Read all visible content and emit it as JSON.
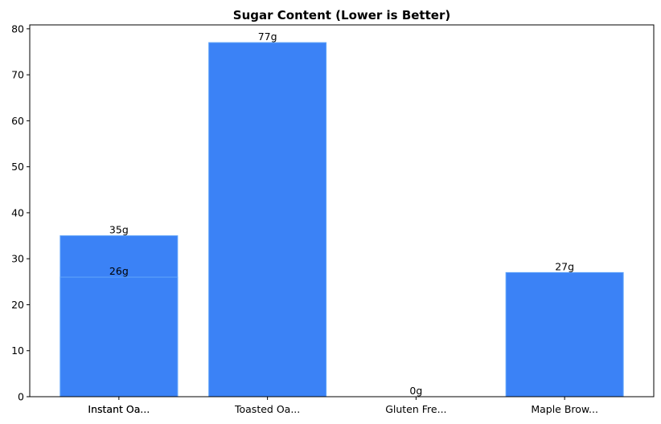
{
  "chart_data": {
    "type": "bar",
    "title": "Sugar Content (Lower is Better)",
    "categories": [
      "Instant Oa...",
      "Toasted Oa...",
      "Instant Oa...",
      "Gluten Fre...",
      "Maple Brow..."
    ],
    "values": [
      35,
      77,
      26,
      0,
      27
    ],
    "value_labels": [
      "35g",
      "77g",
      "26g",
      "0g",
      "27g"
    ],
    "color": "#3b82f6",
    "ylim": [
      0,
      80.85
    ],
    "yticks": [
      0,
      10,
      20,
      30,
      40,
      50,
      60,
      70,
      80
    ],
    "grid": false
  }
}
